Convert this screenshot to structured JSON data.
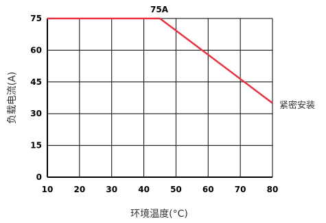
{
  "chart_data": {
    "type": "line",
    "title": "75A",
    "xlabel": "环境温度(°C)",
    "ylabel": "负载电流(A)",
    "xlim": [
      10,
      80
    ],
    "ylim": [
      0,
      75
    ],
    "x_ticks": [
      10,
      20,
      30,
      40,
      50,
      60,
      70,
      80
    ],
    "y_ticks": [
      0,
      15,
      30,
      45,
      60,
      75
    ],
    "x_tick_labels": [
      "10",
      "20",
      "30",
      "40",
      "50",
      "60",
      "70",
      "80"
    ],
    "y_tick_labels": [
      "0",
      "15",
      "30",
      "45",
      "60",
      "75"
    ],
    "grid": true,
    "series": [
      {
        "name": "紧密安装",
        "color": "#e8313f",
        "x": [
          10,
          45,
          80
        ],
        "y": [
          75,
          75,
          35
        ]
      }
    ]
  }
}
